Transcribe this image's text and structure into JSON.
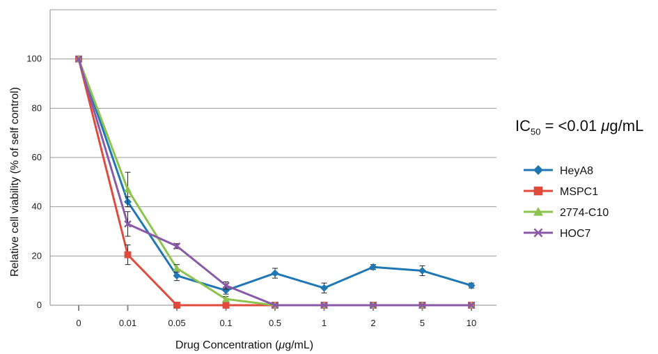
{
  "chart_data": {
    "type": "line",
    "xlabel_pre": "Drug Concentration (",
    "xlabel_unit_mu": "μ",
    "xlabel_post": "g/mL)",
    "ylabel": "Relative cell viability (% of self control)",
    "categories": [
      "0",
      "0.01",
      "0.05",
      "0.1",
      "0.5",
      "1",
      "2",
      "5",
      "10"
    ],
    "ylim": [
      0,
      120
    ],
    "yticks": [
      0,
      20,
      40,
      60,
      80,
      100
    ],
    "grid": true,
    "legend_position": "right",
    "series": [
      {
        "name": "HeyA8",
        "color": "#1f77b4",
        "marker": "diamond",
        "values": [
          100,
          42,
          12,
          6,
          13,
          7,
          15.5,
          14,
          8
        ],
        "errors": [
          0,
          2,
          2,
          1.5,
          2,
          2,
          1,
          2,
          1
        ]
      },
      {
        "name": "MSPC1",
        "color": "#e04a3c",
        "marker": "square",
        "values": [
          100,
          20.5,
          0,
          0,
          0,
          0,
          0,
          0,
          0
        ],
        "errors": [
          0,
          4,
          0,
          0,
          0,
          0,
          0,
          0,
          0
        ]
      },
      {
        "name": "2774-C10",
        "color": "#8dc24f",
        "marker": "triangle",
        "values": [
          100,
          47,
          15,
          2.5,
          0,
          0,
          0,
          0,
          0
        ],
        "errors": [
          0,
          7,
          1.5,
          1,
          0,
          0,
          0,
          0,
          0
        ]
      },
      {
        "name": "HOC7",
        "color": "#8a5aa8",
        "marker": "x",
        "values": [
          100,
          33,
          24,
          8,
          0,
          0,
          0,
          0,
          0
        ],
        "errors": [
          0,
          5,
          1,
          1.5,
          0,
          0,
          0,
          0,
          0
        ]
      }
    ]
  },
  "annotation": {
    "ic_pre": "IC",
    "ic_sub": "50",
    "ic_mid": " = <0.01 ",
    "ic_mu": "μ",
    "ic_post": "g/mL"
  }
}
